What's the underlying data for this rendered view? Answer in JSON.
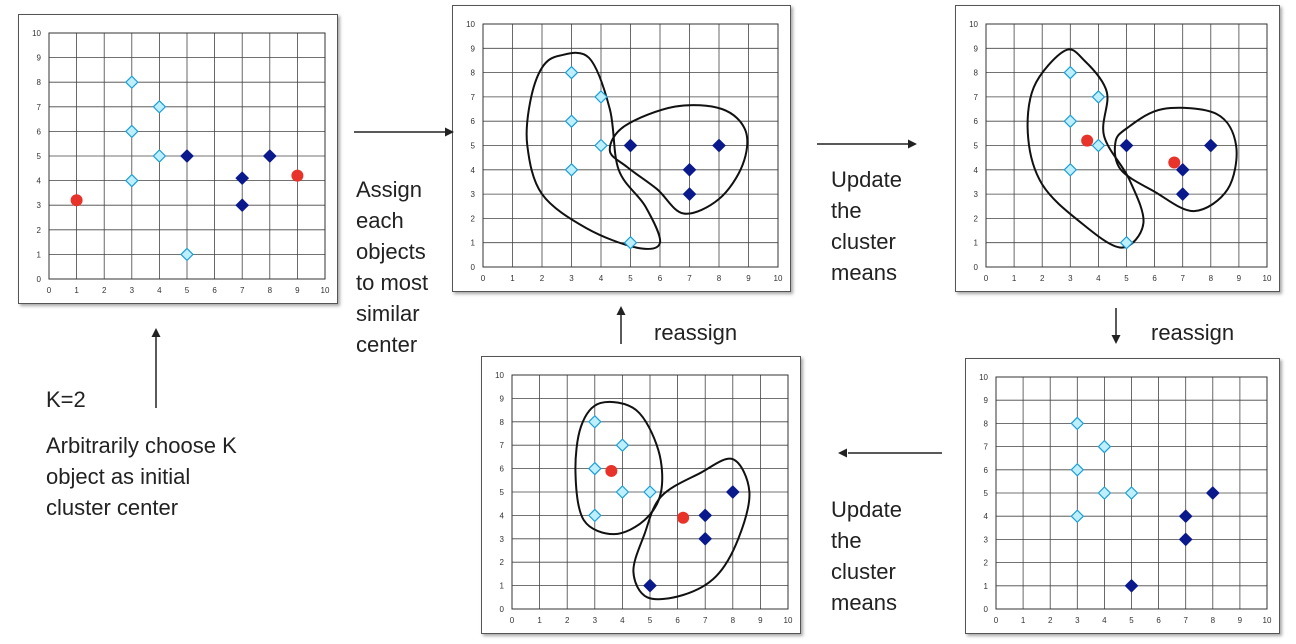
{
  "labels": {
    "k_value": "K=2",
    "init_desc": [
      "Arbitrarily choose K",
      "object as initial",
      "cluster center"
    ],
    "assign": [
      "Assign",
      "each",
      "objects",
      "to most",
      "similar",
      "center"
    ],
    "update_top": [
      "Update",
      "the",
      "cluster",
      "means"
    ],
    "update_bottom": [
      "Update",
      "the",
      "cluster",
      "means"
    ],
    "reassign_left": "reassign",
    "reassign_right": "reassign"
  },
  "colors": {
    "light_point": "#bfefff",
    "light_point_border": "#1a9ed8",
    "dark_point": "#0a1a8c",
    "center_point": "#e8332a",
    "grid": "#444444"
  },
  "chart_data": [
    {
      "type": "scatter",
      "panel": "initial",
      "xlim": [
        0,
        10
      ],
      "ylim": [
        0,
        10
      ],
      "xticks": [
        0,
        1,
        2,
        3,
        4,
        5,
        6,
        7,
        8,
        9,
        10
      ],
      "yticks": [
        0,
        1,
        2,
        3,
        4,
        5,
        6,
        7,
        8,
        9,
        10
      ],
      "light": [
        [
          3,
          8
        ],
        [
          3,
          6
        ],
        [
          3,
          4
        ],
        [
          4,
          7
        ],
        [
          4,
          5
        ],
        [
          5,
          1
        ]
      ],
      "dark": [
        [
          5,
          5
        ],
        [
          7,
          4.1
        ],
        [
          7,
          3
        ],
        [
          8,
          5
        ]
      ],
      "centers": [
        [
          1,
          3.2
        ],
        [
          9,
          4.2
        ]
      ],
      "clusters": []
    },
    {
      "type": "scatter",
      "panel": "assigned",
      "xlim": [
        0,
        10
      ],
      "ylim": [
        0,
        10
      ],
      "xticks": [
        0,
        1,
        2,
        3,
        4,
        5,
        6,
        7,
        8,
        9,
        10
      ],
      "yticks": [
        0,
        1,
        2,
        3,
        4,
        5,
        6,
        7,
        8,
        9,
        10
      ],
      "light": [
        [
          3,
          8
        ],
        [
          3,
          6
        ],
        [
          3,
          4
        ],
        [
          4,
          7
        ],
        [
          4,
          5
        ],
        [
          5,
          1
        ]
      ],
      "dark": [
        [
          5,
          5
        ],
        [
          7,
          4
        ],
        [
          7,
          3
        ],
        [
          8,
          5
        ]
      ],
      "centers": [],
      "clusters": [
        [
          [
            2.6,
            8.7
          ],
          [
            3.6,
            8.6
          ],
          [
            4.3,
            6.5
          ],
          [
            4.6,
            4.0
          ],
          [
            5.5,
            2.5
          ],
          [
            6.0,
            1.0
          ],
          [
            5.2,
            0.8
          ],
          [
            3.5,
            1.6
          ],
          [
            2.0,
            3.0
          ],
          [
            1.5,
            5.0
          ],
          [
            1.6,
            6.8
          ],
          [
            2.0,
            8.2
          ]
        ],
        [
          [
            4.8,
            5.8
          ],
          [
            6.5,
            6.6
          ],
          [
            8.1,
            6.5
          ],
          [
            8.9,
            5.6
          ],
          [
            8.8,
            4.2
          ],
          [
            8.0,
            2.8
          ],
          [
            6.8,
            2.2
          ],
          [
            5.9,
            3.2
          ],
          [
            4.9,
            4.1
          ],
          [
            4.3,
            4.8
          ]
        ]
      ]
    },
    {
      "type": "scatter",
      "panel": "updated-means",
      "xlim": [
        0,
        10
      ],
      "ylim": [
        0,
        10
      ],
      "xticks": [
        0,
        1,
        2,
        3,
        4,
        5,
        6,
        7,
        8,
        9,
        10
      ],
      "yticks": [
        0,
        1,
        2,
        3,
        4,
        5,
        6,
        7,
        8,
        9,
        10
      ],
      "light": [
        [
          3,
          8
        ],
        [
          3,
          6
        ],
        [
          3,
          4
        ],
        [
          4,
          7
        ],
        [
          4,
          5
        ],
        [
          5,
          1
        ]
      ],
      "dark": [
        [
          5,
          5
        ],
        [
          7,
          4
        ],
        [
          7,
          3
        ],
        [
          8,
          5
        ]
      ],
      "centers": [
        [
          3.6,
          5.2
        ],
        [
          6.7,
          4.3
        ]
      ],
      "clusters": [
        [
          [
            2.8,
            8.9
          ],
          [
            3.5,
            8.5
          ],
          [
            4.3,
            7.2
          ],
          [
            4.2,
            5.4
          ],
          [
            5.1,
            3.6
          ],
          [
            5.6,
            1.8
          ],
          [
            4.8,
            0.8
          ],
          [
            3.3,
            1.9
          ],
          [
            2.0,
            3.4
          ],
          [
            1.5,
            5.3
          ],
          [
            1.7,
            7.4
          ]
        ],
        [
          [
            5.0,
            5.7
          ],
          [
            6.3,
            6.5
          ],
          [
            8.2,
            6.3
          ],
          [
            8.9,
            5.0
          ],
          [
            8.6,
            3.2
          ],
          [
            7.4,
            2.3
          ],
          [
            6.0,
            3.1
          ],
          [
            4.8,
            4.0
          ],
          [
            4.6,
            5.1
          ]
        ]
      ]
    },
    {
      "type": "scatter",
      "panel": "reassigned",
      "xlim": [
        0,
        10
      ],
      "ylim": [
        0,
        10
      ],
      "xticks": [
        0,
        1,
        2,
        3,
        4,
        5,
        6,
        7,
        8,
        9,
        10
      ],
      "yticks": [
        0,
        1,
        2,
        3,
        4,
        5,
        6,
        7,
        8,
        9,
        10
      ],
      "light": [
        [
          3,
          8
        ],
        [
          3,
          6
        ],
        [
          3,
          4
        ],
        [
          4,
          7
        ],
        [
          4,
          5
        ],
        [
          5,
          5
        ]
      ],
      "dark": [
        [
          5,
          1
        ],
        [
          7,
          4
        ],
        [
          7,
          3
        ],
        [
          8,
          5
        ]
      ],
      "centers": [],
      "clusters": []
    },
    {
      "type": "scatter",
      "panel": "final",
      "xlim": [
        0,
        10
      ],
      "ylim": [
        0,
        10
      ],
      "xticks": [
        0,
        1,
        2,
        3,
        4,
        5,
        6,
        7,
        8,
        9,
        10
      ],
      "yticks": [
        0,
        1,
        2,
        3,
        4,
        5,
        6,
        7,
        8,
        9,
        10
      ],
      "light": [
        [
          3,
          8
        ],
        [
          3,
          6
        ],
        [
          3,
          4
        ],
        [
          4,
          7
        ],
        [
          4,
          5
        ],
        [
          5,
          5
        ]
      ],
      "dark": [
        [
          5,
          1
        ],
        [
          7,
          4
        ],
        [
          7,
          3
        ],
        [
          8,
          5
        ]
      ],
      "centers": [
        [
          3.6,
          5.9
        ],
        [
          6.2,
          3.9
        ]
      ],
      "clusters": [
        [
          [
            3.2,
            8.8
          ],
          [
            4.5,
            8.5
          ],
          [
            5.3,
            6.8
          ],
          [
            5.4,
            5.0
          ],
          [
            4.8,
            3.8
          ],
          [
            3.7,
            3.2
          ],
          [
            2.6,
            3.8
          ],
          [
            2.3,
            5.8
          ],
          [
            2.5,
            7.8
          ]
        ],
        [
          [
            5.4,
            4.8
          ],
          [
            6.8,
            5.8
          ],
          [
            8.0,
            6.4
          ],
          [
            8.6,
            5.0
          ],
          [
            8.2,
            3.0
          ],
          [
            7.4,
            1.4
          ],
          [
            6.2,
            0.6
          ],
          [
            4.9,
            0.5
          ],
          [
            4.4,
            1.6
          ],
          [
            4.8,
            3.2
          ]
        ]
      ]
    }
  ]
}
